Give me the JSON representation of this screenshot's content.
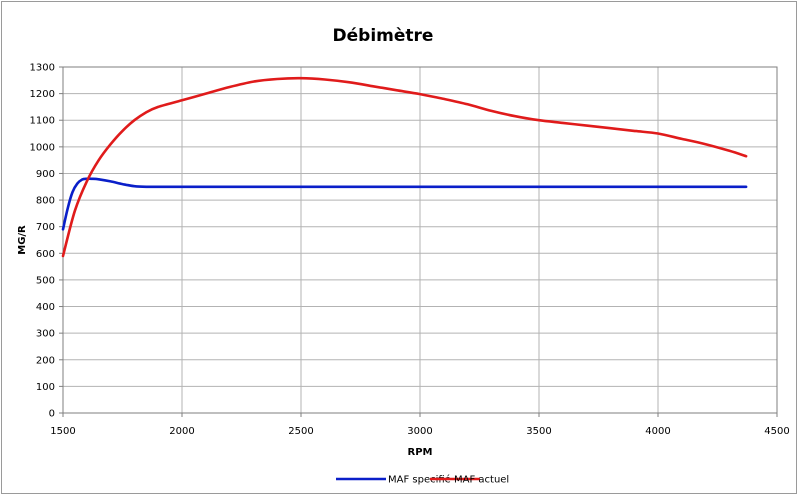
{
  "chart_data": {
    "type": "line",
    "title": "Débimètre",
    "xlabel": "RPM",
    "ylabel": "MG/R",
    "xlim": [
      1500,
      4500
    ],
    "ylim": [
      0,
      1300
    ],
    "x_ticks": [
      1500,
      2000,
      2500,
      3000,
      3500,
      4000,
      4500
    ],
    "y_ticks": [
      0,
      100,
      200,
      300,
      400,
      500,
      600,
      700,
      800,
      900,
      1000,
      1100,
      1200,
      1300
    ],
    "grid": "vertical and horizontal",
    "legend_position": "bottom",
    "series": [
      {
        "name": "MAF specifié",
        "color": "#0a1fc9",
        "x": [
          1500,
          1520,
          1540,
          1560,
          1580,
          1600,
          1620,
          1650,
          1700,
          1750,
          1800,
          1850,
          2000,
          2500,
          3000,
          3500,
          4000,
          4370
        ],
        "y": [
          690,
          770,
          830,
          862,
          877,
          880,
          880,
          878,
          870,
          860,
          852,
          850,
          850,
          850,
          850,
          850,
          850,
          850
        ]
      },
      {
        "name": "MAF actuel",
        "color": "#e01b1b",
        "x": [
          1500,
          1550,
          1600,
          1650,
          1700,
          1750,
          1800,
          1850,
          1900,
          2000,
          2100,
          2200,
          2300,
          2400,
          2500,
          2600,
          2700,
          2800,
          2900,
          3000,
          3100,
          3200,
          3300,
          3400,
          3500,
          3600,
          3700,
          3800,
          3900,
          4000,
          4100,
          4200,
          4300,
          4370
        ],
        "y": [
          590,
          760,
          870,
          950,
          1010,
          1060,
          1100,
          1130,
          1150,
          1175,
          1200,
          1225,
          1245,
          1255,
          1258,
          1253,
          1243,
          1228,
          1213,
          1198,
          1180,
          1160,
          1135,
          1115,
          1100,
          1090,
          1080,
          1070,
          1060,
          1050,
          1030,
          1010,
          985,
          965
        ]
      }
    ]
  }
}
